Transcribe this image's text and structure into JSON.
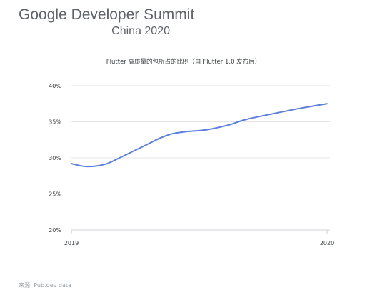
{
  "header": {
    "brand": "Google",
    "title_rest": "Developer Summit",
    "subtitle": "China 2020"
  },
  "source": "来源: Pub.dev data",
  "colors": {
    "line": "#5b7fdb",
    "grid": "#dadce0",
    "text": "#5f6368"
  },
  "chart_data": {
    "type": "line",
    "title": "Flutter 高质量的包所占的比例（自 Flutter 1.0 发布后）",
    "xlabel": "",
    "ylabel": "",
    "x_tick_labels": [
      "2019",
      "2020"
    ],
    "y_tick_labels": [
      "20%",
      "25%",
      "30%",
      "35%",
      "40%"
    ],
    "y_ticks": [
      20,
      25,
      30,
      35,
      40
    ],
    "ylim": [
      20,
      40
    ],
    "xlim": [
      0,
      1
    ],
    "grid": true,
    "series": [
      {
        "name": "",
        "x": [
          0.0,
          0.06,
          0.13,
          0.2,
          0.27,
          0.39,
          0.53,
          0.62,
          0.68,
          0.8,
          0.9,
          1.0
        ],
        "values": [
          29.2,
          28.8,
          29.1,
          30.2,
          31.4,
          33.3,
          33.9,
          34.6,
          35.3,
          36.2,
          36.9,
          37.5
        ]
      }
    ]
  }
}
